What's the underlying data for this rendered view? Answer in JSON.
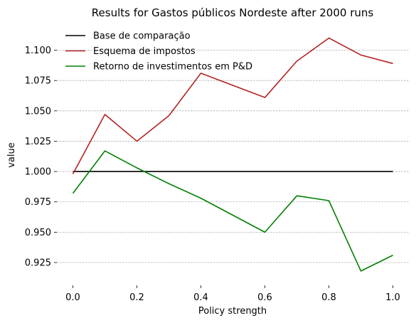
{
  "chart_data": {
    "type": "line",
    "title": "Results for Gastos públicos Nordeste after 2000 runs",
    "xlabel": "Policy strength",
    "ylabel": "value",
    "x": [
      0.0,
      0.1,
      0.2,
      0.3,
      0.4,
      0.5,
      0.6,
      0.7,
      0.8,
      0.9,
      1.0
    ],
    "xlim": [
      -0.05,
      1.05
    ],
    "ylim": [
      0.908,
      1.122
    ],
    "xticks": [
      0.0,
      0.2,
      0.4,
      0.6,
      0.8,
      1.0
    ],
    "xtick_labels": [
      "0.0",
      "0.2",
      "0.4",
      "0.6",
      "0.8",
      "1.0"
    ],
    "yticks": [
      0.925,
      0.95,
      0.975,
      1.0,
      1.025,
      1.05,
      1.075,
      1.1
    ],
    "ytick_labels": [
      "0.925",
      "0.950",
      "0.975",
      "1.000",
      "1.025",
      "1.050",
      "1.075",
      "1.100"
    ],
    "grid": "horizontal dashed",
    "legend_position": "top-left",
    "series": [
      {
        "name": "Base de comparação",
        "color": "#000000",
        "values": [
          1.0,
          1.0,
          1.0,
          1.0,
          1.0,
          1.0,
          1.0,
          1.0,
          1.0,
          1.0,
          1.0
        ]
      },
      {
        "name": "Esquema de impostos",
        "color": "#b22222",
        "values": [
          0.998,
          1.047,
          1.025,
          1.046,
          1.081,
          1.071,
          1.061,
          1.091,
          1.11,
          1.096,
          1.089
        ]
      },
      {
        "name": "Retorno de investimentos em P&D",
        "color": "#008000",
        "values": [
          0.982,
          1.017,
          1.003,
          0.99,
          0.978,
          0.964,
          0.95,
          0.98,
          0.976,
          0.918,
          0.931
        ]
      }
    ]
  }
}
